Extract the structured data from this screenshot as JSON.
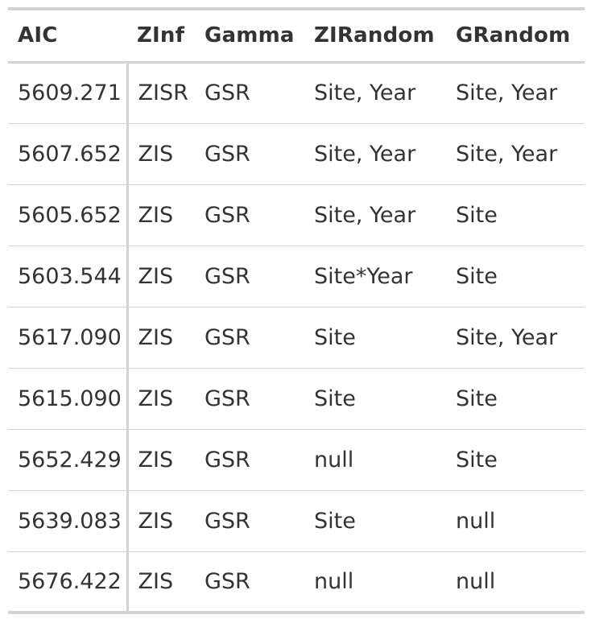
{
  "table": {
    "columns": [
      "AIC",
      "ZInf",
      "Gamma",
      "ZIRandom",
      "GRandom"
    ],
    "rows": [
      [
        "5609.271",
        "ZISR",
        "GSR",
        "Site, Year",
        "Site, Year"
      ],
      [
        "5607.652",
        "ZIS",
        "GSR",
        "Site, Year",
        "Site, Year"
      ],
      [
        "5605.652",
        "ZIS",
        "GSR",
        "Site, Year",
        "Site"
      ],
      [
        "5603.544",
        "ZIS",
        "GSR",
        "Site*Year",
        "Site"
      ],
      [
        "5617.090",
        "ZIS",
        "GSR",
        "Site",
        "Site, Year"
      ],
      [
        "5615.090",
        "ZIS",
        "GSR",
        "Site",
        "Site"
      ],
      [
        "5652.429",
        "ZIS",
        "GSR",
        "null",
        "Site"
      ],
      [
        "5639.083",
        "ZIS",
        "GSR",
        "Site",
        "null"
      ],
      [
        "5676.422",
        "ZIS",
        "GSR",
        "null",
        "null"
      ]
    ]
  },
  "colors": {
    "text": "#333333",
    "rule": "#d3d3d3",
    "background": "#ffffff"
  }
}
